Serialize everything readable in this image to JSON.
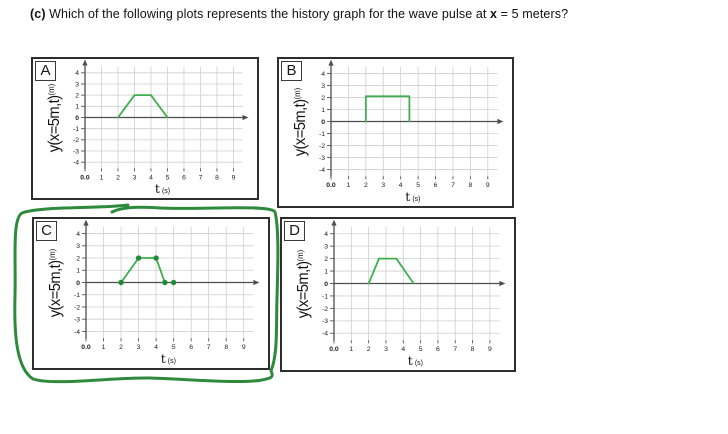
{
  "title": {
    "prefix": "(c)",
    "text1": "  Which of the following plots represents the history graph for the wave pulse at ",
    "bold_var": "x",
    "text2": " = 5 meters?"
  },
  "answer_annotation": {
    "type": "hand-drawn-ellipse",
    "around_panel": "C",
    "color": "#2e8b3d"
  },
  "colors": {
    "pulse_green": "#3eae4f",
    "marker_green": "#1f8b35",
    "grid_gray": "#cfcfcf",
    "axis_gray": "#4d4d4d"
  },
  "chart_data": [
    {
      "panel": "A",
      "type": "line",
      "xlabel_main": "t",
      "xlabel_unit": "(s)",
      "ylabel_main": "y(x=5m,t)",
      "ylabel_unit": "(m)",
      "x_ticks": [
        "0.0",
        "1",
        "2",
        "3",
        "4",
        "5",
        "6",
        "7",
        "8",
        "9"
      ],
      "y_ticks": [
        "4",
        "3",
        "2",
        "1",
        "0",
        "-1",
        "-2",
        "-3",
        "-4"
      ],
      "xlim": [
        0,
        9.7
      ],
      "ylim": [
        -4.7,
        4.7
      ],
      "grid": true,
      "line_color": "#3eae4f",
      "series": [
        {
          "name": "wave-pulse",
          "points": [
            [
              2,
              0
            ],
            [
              3,
              2
            ],
            [
              4,
              2
            ],
            [
              5,
              0
            ]
          ]
        }
      ],
      "markers": [],
      "marker_color": "#1f8b35"
    },
    {
      "panel": "B",
      "type": "line",
      "xlabel_main": "t",
      "xlabel_unit": "(s)",
      "ylabel_main": "y(x=5m,t)",
      "ylabel_unit": "(m)",
      "x_ticks": [
        "0.0",
        "1",
        "2",
        "3",
        "4",
        "5",
        "6",
        "7",
        "8",
        "9"
      ],
      "y_ticks": [
        "4",
        "3",
        "2",
        "1",
        "0",
        "-1",
        "-2",
        "-3",
        "-4"
      ],
      "xlim": [
        0,
        9.7
      ],
      "ylim": [
        -4.7,
        4.7
      ],
      "grid": true,
      "line_color": "#3eae4f",
      "series": [
        {
          "name": "wave-pulse",
          "points": [
            [
              2,
              0
            ],
            [
              2,
              2.1
            ],
            [
              4.5,
              2.1
            ],
            [
              4.5,
              0
            ]
          ]
        }
      ],
      "markers": [],
      "marker_color": "#1f8b35"
    },
    {
      "panel": "C",
      "type": "line",
      "xlabel_main": "t",
      "xlabel_unit": "(s)",
      "ylabel_main": "y(x=5m,t)",
      "ylabel_unit": "(m)",
      "x_ticks": [
        "0.0",
        "1",
        "2",
        "3",
        "4",
        "5",
        "6",
        "7",
        "8",
        "9"
      ],
      "y_ticks": [
        "4",
        "3",
        "2",
        "1",
        "0",
        "-1",
        "-2",
        "-3",
        "-4"
      ],
      "xlim": [
        0,
        9.7
      ],
      "ylim": [
        -4.7,
        4.7
      ],
      "grid": true,
      "line_color": "#3eae4f",
      "series": [
        {
          "name": "wave-pulse",
          "points": [
            [
              2,
              0
            ],
            [
              3,
              2
            ],
            [
              4,
              2
            ],
            [
              4.5,
              0
            ]
          ]
        }
      ],
      "markers": [
        [
          2,
          0
        ],
        [
          3,
          2
        ],
        [
          4,
          2
        ],
        [
          4.5,
          0
        ],
        [
          5,
          0
        ]
      ],
      "marker_color": "#1f8b35"
    },
    {
      "panel": "D",
      "type": "line",
      "xlabel_main": "t",
      "xlabel_unit": "(s)",
      "ylabel_main": "y(x=5m,t)",
      "ylabel_unit": "(m)",
      "x_ticks": [
        "0.0",
        "1",
        "2",
        "3",
        "4",
        "5",
        "6",
        "7",
        "8",
        "9"
      ],
      "y_ticks": [
        "4",
        "3",
        "2",
        "1",
        "0",
        "-1",
        "-2",
        "-3",
        "-4"
      ],
      "xlim": [
        0,
        9.7
      ],
      "ylim": [
        -4.7,
        4.7
      ],
      "grid": true,
      "line_color": "#3eae4f",
      "series": [
        {
          "name": "wave-pulse",
          "points": [
            [
              2,
              0
            ],
            [
              2.6,
              2
            ],
            [
              3.6,
              2
            ],
            [
              4.6,
              0
            ]
          ]
        }
      ],
      "markers": [],
      "marker_color": "#1f8b35"
    }
  ]
}
